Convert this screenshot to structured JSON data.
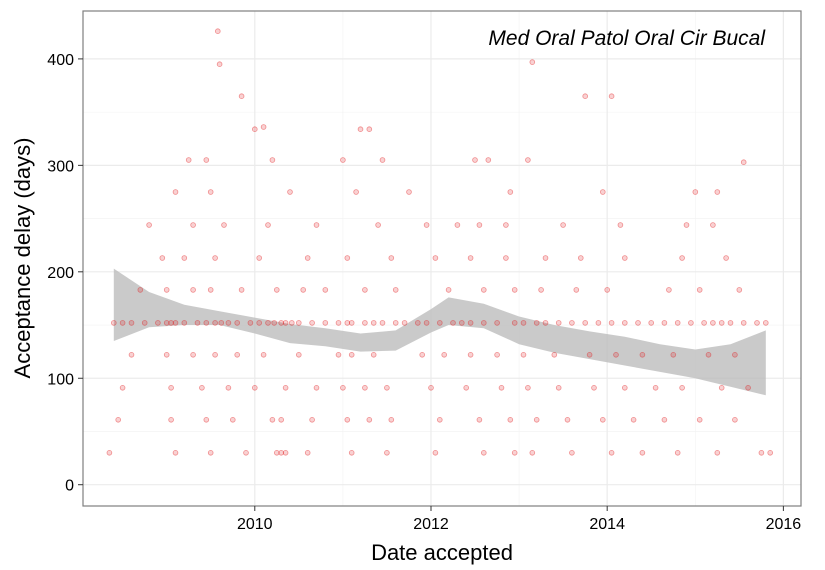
{
  "chart_data": {
    "type": "scatter",
    "title": "",
    "annotation": "Med Oral Patol Oral Cir Bucal",
    "xlabel": "Date accepted",
    "ylabel": "Acceptance delay (days)",
    "xlim": [
      2008.05,
      2016.2
    ],
    "ylim": [
      -20,
      445
    ],
    "x_ticks": [
      2010,
      2012,
      2014,
      2016
    ],
    "x_tick_labels": [
      "2010",
      "2012",
      "2014",
      "2016"
    ],
    "y_ticks": [
      0,
      100,
      200,
      300,
      400
    ],
    "y_tick_labels": [
      "0",
      "100",
      "200",
      "300",
      "400"
    ],
    "grid": true,
    "legend": "none",
    "colors": {
      "points": "#e31a1c",
      "ribbon": "#bdbdbd",
      "grid": "#ebebeb",
      "panel_border": "#7f7f7f"
    },
    "series": [
      {
        "kind": "points",
        "x": [
          2008.4,
          2008.5,
          2008.6,
          2008.75,
          2008.9,
          2009.0,
          2009.05,
          2009.1,
          2009.2,
          2009.35,
          2009.45,
          2009.55,
          2009.62,
          2009.7,
          2009.8,
          2009.95,
          2010.05,
          2010.15,
          2010.22,
          2010.3,
          2010.35,
          2010.42,
          2010.5,
          2010.65,
          2010.8,
          2010.95,
          2011.05,
          2011.1,
          2011.25,
          2011.35,
          2011.45,
          2011.6,
          2011.7,
          2011.85,
          2011.95,
          2012.1,
          2012.25,
          2012.35,
          2012.45,
          2012.6,
          2012.75,
          2012.95,
          2013.05,
          2013.2,
          2013.3,
          2013.45,
          2013.6,
          2013.75,
          2013.9,
          2014.05,
          2014.2,
          2014.35,
          2014.5,
          2014.65,
          2014.8,
          2014.95,
          2015.1,
          2015.2,
          2015.3,
          2015.4,
          2015.55,
          2015.7,
          2015.8,
          2009.58,
          2009.6,
          2009.85,
          2010.1,
          2010.0,
          2011.2,
          2011.3,
          2013.15,
          2013.75,
          2014.05,
          2009.25,
          2009.45,
          2010.2,
          2011.0,
          2011.45,
          2012.5,
          2012.65,
          2013.1,
          2015.55,
          2009.1,
          2009.5,
          2010.4,
          2011.15,
          2011.75,
          2012.9,
          2013.95,
          2015.0,
          2015.25,
          2008.8,
          2009.3,
          2009.65,
          2010.15,
          2010.7,
          2011.4,
          2011.95,
          2012.3,
          2012.55,
          2012.85,
          2013.5,
          2014.15,
          2014.9,
          2015.2,
          2008.95,
          2009.2,
          2009.55,
          2010.05,
          2010.6,
          2011.05,
          2011.55,
          2012.05,
          2012.45,
          2012.85,
          2013.3,
          2013.7,
          2014.2,
          2014.85,
          2015.35,
          2008.7,
          2009.0,
          2009.3,
          2009.5,
          2009.85,
          2010.25,
          2010.55,
          2010.8,
          2011.25,
          2011.6,
          2012.2,
          2012.6,
          2012.95,
          2013.25,
          2013.65,
          2014.0,
          2014.7,
          2015.05,
          2015.5,
          2008.6,
          2009.0,
          2009.3,
          2009.55,
          2009.8,
          2010.1,
          2010.5,
          2010.95,
          2011.1,
          2011.35,
          2011.9,
          2012.15,
          2012.45,
          2012.75,
          2013.05,
          2013.4,
          2013.8,
          2014.1,
          2014.4,
          2014.75,
          2015.15,
          2015.45,
          2008.5,
          2009.05,
          2009.4,
          2009.7,
          2010.0,
          2010.35,
          2010.7,
          2011.0,
          2011.25,
          2011.5,
          2012.0,
          2012.4,
          2012.8,
          2013.1,
          2013.45,
          2013.85,
          2014.2,
          2014.55,
          2014.85,
          2015.3,
          2015.6,
          2008.45,
          2009.05,
          2009.45,
          2009.75,
          2010.2,
          2010.3,
          2010.65,
          2011.05,
          2011.3,
          2011.55,
          2012.1,
          2012.55,
          2012.9,
          2013.2,
          2013.55,
          2013.95,
          2014.3,
          2014.65,
          2015.05,
          2015.45,
          2008.35,
          2009.1,
          2009.5,
          2009.9,
          2010.25,
          2010.3,
          2010.35,
          2010.6,
          2011.1,
          2011.5,
          2012.05,
          2012.6,
          2012.95,
          2013.15,
          2013.6,
          2014.05,
          2014.4,
          2014.8,
          2015.25,
          2015.75,
          2015.85
        ],
        "y": [
          152,
          152,
          152,
          152,
          152,
          152,
          152,
          152,
          152,
          152,
          152,
          152,
          152,
          152,
          152,
          152,
          152,
          152,
          152,
          152,
          152,
          152,
          152,
          152,
          152,
          152,
          152,
          152,
          152,
          152,
          152,
          152,
          152,
          152,
          152,
          152,
          152,
          152,
          152,
          152,
          152,
          152,
          152,
          152,
          152,
          152,
          152,
          152,
          152,
          152,
          152,
          152,
          152,
          152,
          152,
          152,
          152,
          152,
          152,
          152,
          152,
          152,
          152,
          426,
          395,
          365,
          336,
          334,
          334,
          334,
          397,
          365,
          365,
          305,
          305,
          305,
          305,
          305,
          305,
          305,
          305,
          303,
          275,
          275,
          275,
          275,
          275,
          275,
          275,
          275,
          275,
          244,
          244,
          244,
          244,
          244,
          244,
          244,
          244,
          244,
          244,
          244,
          244,
          244,
          244,
          213,
          213,
          213,
          213,
          213,
          213,
          213,
          213,
          213,
          213,
          213,
          213,
          213,
          213,
          213,
          183,
          183,
          183,
          183,
          183,
          183,
          183,
          183,
          183,
          183,
          183,
          183,
          183,
          183,
          183,
          183,
          183,
          183,
          183,
          122,
          122,
          122,
          122,
          122,
          122,
          122,
          122,
          122,
          122,
          122,
          122,
          122,
          122,
          122,
          122,
          122,
          122,
          122,
          122,
          122,
          122,
          91,
          91,
          91,
          91,
          91,
          91,
          91,
          91,
          91,
          91,
          91,
          91,
          91,
          91,
          91,
          91,
          91,
          91,
          91,
          91,
          91,
          61,
          61,
          61,
          61,
          61,
          61,
          61,
          61,
          61,
          61,
          61,
          61,
          61,
          61,
          61,
          61,
          61,
          61,
          61,
          61,
          30,
          30,
          30,
          30,
          30,
          30,
          30,
          30,
          30,
          30,
          30,
          30,
          30,
          30,
          30,
          30,
          30,
          30,
          30,
          30,
          30
        ]
      },
      {
        "kind": "smooth_ribbon",
        "x": [
          2008.4,
          2008.8,
          2009.2,
          2009.6,
          2010.0,
          2010.4,
          2010.8,
          2011.2,
          2011.6,
          2012.0,
          2012.2,
          2012.6,
          2013.0,
          2013.4,
          2013.8,
          2014.2,
          2014.6,
          2015.0,
          2015.4,
          2015.8
        ],
        "lower": [
          135,
          148,
          150,
          150,
          142,
          133,
          130,
          125,
          126,
          143,
          150,
          147,
          132,
          124,
          118,
          112,
          106,
          100,
          92,
          84
        ],
        "upper": [
          203,
          181,
          169,
          163,
          157,
          151,
          147,
          142,
          145,
          165,
          176,
          170,
          158,
          150,
          144,
          139,
          132,
          127,
          132,
          145
        ]
      }
    ]
  }
}
